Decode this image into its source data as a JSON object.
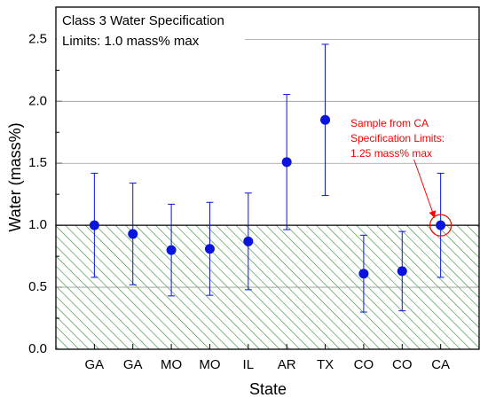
{
  "chart_data": {
    "type": "errorbar",
    "x_label": "State",
    "y_label": "Water (mass%)",
    "annotation": [
      "Class 3 Water Specification",
      "Limits: 1.0 mass% max"
    ],
    "callout": {
      "text": [
        "Sample from CA",
        "Specification Limits:",
        "1.25 mass% max"
      ],
      "color": "#ff0000"
    },
    "limit": 1.0,
    "limit_color": "#2e8b2e",
    "categories": [
      "GA",
      "GA",
      "MO",
      "MO",
      "IL",
      "AR",
      "TX",
      "CO",
      "CO",
      "CA"
    ],
    "values": [
      1.0,
      0.93,
      0.8,
      0.81,
      0.87,
      1.51,
      1.85,
      0.61,
      0.63,
      1.0
    ],
    "errors": [
      0.42,
      0.41,
      0.37,
      0.375,
      0.39,
      0.545,
      0.61,
      0.31,
      0.32,
      0.42
    ],
    "color": "#0a14dc",
    "ylim": [
      0,
      2.76
    ],
    "yticks": [
      {
        "value": 0,
        "label": "0.0"
      },
      {
        "value": 0.5,
        "label": "0.5"
      },
      {
        "value": 1,
        "label": "1.0"
      },
      {
        "value": 1.5,
        "label": "1.5"
      },
      {
        "value": 2,
        "label": "2.0"
      },
      {
        "value": 2.5,
        "label": "2.5"
      }
    ],
    "grid": true
  }
}
